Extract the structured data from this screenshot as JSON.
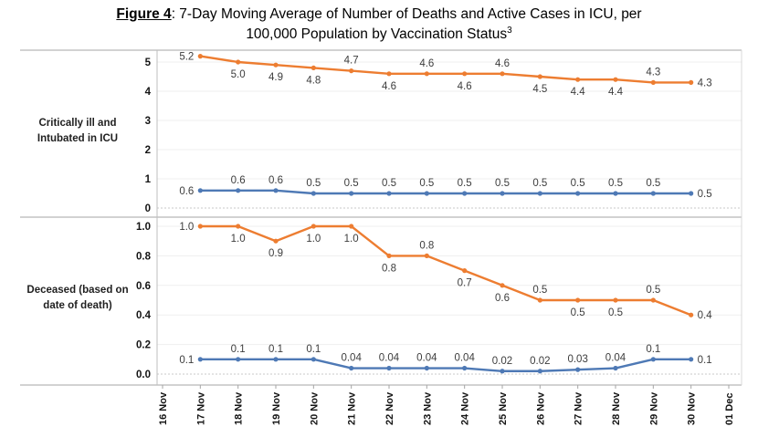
{
  "title": {
    "figure_label": "Figure 4",
    "text_line1": ": 7-Day Moving Average of Number of Deaths and Active Cases in ICU, per",
    "text_line2": "100,000 Population by Vaccination Status",
    "footnote_marker": "3"
  },
  "colors": {
    "orange_series": "#ED7D31",
    "blue_series": "#4E79B5",
    "data_label": "#3d3d3d",
    "grid": "#efefef",
    "zero_line": "#c9c9c9",
    "border": "#a6a6a6",
    "axis_line": "#bfbfbf",
    "right_border": "#d9d9d9"
  },
  "x_axis": {
    "tick_labels": [
      "16 Nov",
      "17 Nov",
      "18 Nov",
      "19 Nov",
      "20 Nov",
      "21 Nov",
      "22 Nov",
      "23 Nov",
      "24 Nov",
      "25 Nov",
      "26 Nov",
      "27 Nov",
      "28 Nov",
      "29 Nov",
      "30 Nov",
      "01 Dec"
    ]
  },
  "chart_data": [
    {
      "type": "line",
      "panel_label_lines": [
        "Critically ill and",
        "Intubated in ICU"
      ],
      "y_ticks": [
        "5",
        "4",
        "3",
        "2",
        "1",
        "0"
      ],
      "ylim": [
        0,
        5
      ],
      "grid": true,
      "legend": "none",
      "x_categories": [
        "17 Nov",
        "18 Nov",
        "19 Nov",
        "20 Nov",
        "21 Nov",
        "22 Nov",
        "23 Nov",
        "24 Nov",
        "25 Nov",
        "26 Nov",
        "27 Nov",
        "28 Nov",
        "29 Nov",
        "30 Nov"
      ],
      "series": [
        {
          "name": "orange-series",
          "color_key": "orange_series",
          "values": [
            5.2,
            5.0,
            4.9,
            4.8,
            4.7,
            4.6,
            4.6,
            4.6,
            4.6,
            4.5,
            4.4,
            4.4,
            4.3,
            4.3
          ],
          "labels": [
            "5.2",
            "5.0",
            "4.9",
            "4.8",
            "4.7",
            "4.6",
            "4.6",
            "4.6",
            "4.6",
            "4.5",
            "4.4",
            "4.4",
            "4.3",
            "4.3"
          ],
          "label_pos": [
            "left",
            "below",
            "below",
            "below",
            "above",
            "below",
            "above",
            "below",
            "above",
            "below",
            "below",
            "below",
            "above",
            "right"
          ]
        },
        {
          "name": "blue-series",
          "color_key": "blue_series",
          "values": [
            0.6,
            0.6,
            0.6,
            0.5,
            0.5,
            0.5,
            0.5,
            0.5,
            0.5,
            0.5,
            0.5,
            0.5,
            0.5,
            0.5
          ],
          "labels": [
            "0.6",
            "0.6",
            "0.6",
            "0.5",
            "0.5",
            "0.5",
            "0.5",
            "0.5",
            "0.5",
            "0.5",
            "0.5",
            "0.5",
            "0.5",
            "0.5"
          ],
          "label_pos": [
            "left",
            "above",
            "above",
            "above",
            "above",
            "above",
            "above",
            "above",
            "above",
            "above",
            "above",
            "above",
            "above",
            "right"
          ]
        }
      ]
    },
    {
      "type": "line",
      "panel_label_lines": [
        "Deceased (based on",
        "date of death)"
      ],
      "y_ticks": [
        "1.0",
        "0.8",
        "0.6",
        "0.4",
        "0.2",
        "0.0"
      ],
      "ylim": [
        0,
        1
      ],
      "grid": true,
      "legend": "none",
      "x_categories": [
        "17 Nov",
        "18 Nov",
        "19 Nov",
        "20 Nov",
        "21 Nov",
        "22 Nov",
        "23 Nov",
        "24 Nov",
        "25 Nov",
        "26 Nov",
        "27 Nov",
        "28 Nov",
        "29 Nov",
        "30 Nov"
      ],
      "series": [
        {
          "name": "orange-series",
          "color_key": "orange_series",
          "values": [
            1.0,
            1.0,
            0.9,
            1.0,
            1.0,
            0.8,
            0.8,
            0.7,
            0.6,
            0.5,
            0.5,
            0.5,
            0.5,
            0.4
          ],
          "labels": [
            "1.0",
            "1.0",
            "0.9",
            "1.0",
            "1.0",
            "0.8",
            "0.8",
            "0.7",
            "0.6",
            "0.5",
            "0.5",
            "0.5",
            "0.5",
            "0.4"
          ],
          "label_pos": [
            "left",
            "below",
            "below",
            "below",
            "below",
            "below",
            "above",
            "below",
            "below",
            "above",
            "below",
            "below",
            "above",
            "right"
          ]
        },
        {
          "name": "blue-series",
          "color_key": "blue_series",
          "values": [
            0.1,
            0.1,
            0.1,
            0.1,
            0.04,
            0.04,
            0.04,
            0.04,
            0.02,
            0.02,
            0.03,
            0.04,
            0.1,
            0.1
          ],
          "labels": [
            "0.1",
            "0.1",
            "0.1",
            "0.1",
            "0.04",
            "0.04",
            "0.04",
            "0.04",
            "0.02",
            "0.02",
            "0.03",
            "0.04",
            "0.1",
            "0.1"
          ],
          "label_pos": [
            "left",
            "above",
            "above",
            "above",
            "above",
            "above",
            "above",
            "above",
            "above",
            "above",
            "above",
            "above",
            "above",
            "right"
          ]
        }
      ]
    }
  ]
}
